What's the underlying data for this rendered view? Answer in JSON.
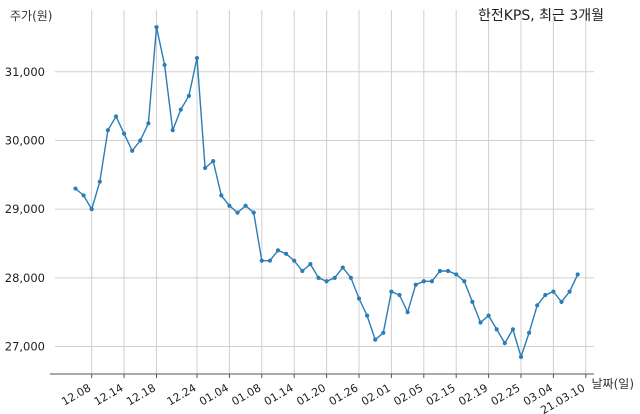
{
  "chart_data": {
    "type": "line",
    "title": "한전KPS, 최근 3개월",
    "ylabel": "주가(원)",
    "xlabel": "날짜(일)",
    "ylim": [
      26600,
      31900
    ],
    "yticks": [
      27000,
      28000,
      29000,
      30000,
      31000
    ],
    "ytick_labels": [
      "27,000",
      "28,000",
      "29,000",
      "30,000",
      "31,000"
    ],
    "xtick_labels": [
      "12.08",
      "12.14",
      "12.18",
      "12.24",
      "01.04",
      "01.08",
      "01.14",
      "01.20",
      "01.26",
      "02.01",
      "02.05",
      "02.15",
      "02.19",
      "02.25",
      "03.04",
      "21.03.10"
    ],
    "xtick_index": [
      2,
      6,
      10,
      15,
      19,
      23,
      27,
      31,
      35,
      39,
      43,
      47,
      51,
      55,
      59,
      63
    ],
    "grid": true,
    "series": [
      {
        "color": "#2a7db5",
        "values": [
          29300,
          29200,
          29000,
          29400,
          30150,
          30350,
          30100,
          29850,
          30000,
          30250,
          31650,
          31100,
          30150,
          30450,
          30650,
          31200,
          29600,
          29700,
          29200,
          29050,
          28950,
          29050,
          28950,
          28250,
          28250,
          28400,
          28350,
          28250,
          28100,
          28200,
          28000,
          27950,
          28000,
          28150,
          28000,
          27700,
          27450,
          27100,
          27200,
          27800,
          27750,
          27500,
          27900,
          27950,
          27950,
          28100,
          28100,
          28050,
          27950,
          27650,
          27350,
          27450,
          27250,
          27050,
          27250,
          26850,
          27200,
          27600,
          27750,
          27800,
          27650,
          27800,
          28050
        ]
      }
    ]
  }
}
